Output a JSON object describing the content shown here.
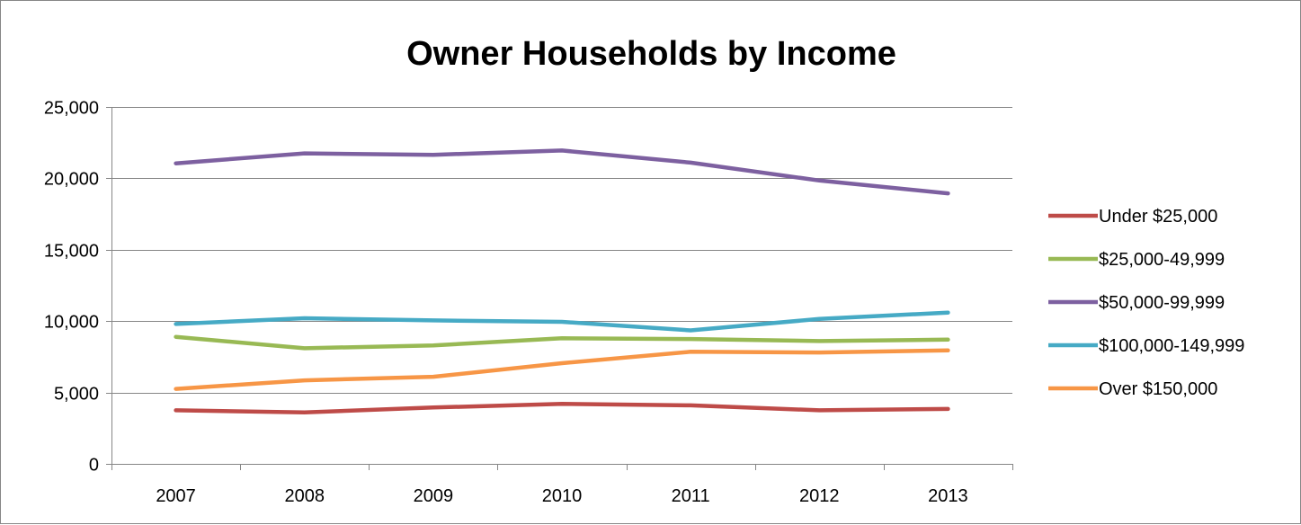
{
  "chart_data": {
    "type": "line",
    "title": "Owner Households by Income",
    "xlabel": "",
    "ylabel": "",
    "categories": [
      "2007",
      "2008",
      "2009",
      "2010",
      "2011",
      "2012",
      "2013"
    ],
    "ylim": [
      0,
      25000
    ],
    "yticks": [
      0,
      5000,
      10000,
      15000,
      20000,
      25000
    ],
    "ytick_labels": [
      "0",
      "5,000",
      "10,000",
      "15,000",
      "20,000",
      "25,000"
    ],
    "grid": "horizontal",
    "legend": "right",
    "series": [
      {
        "name": "Under $25,000",
        "color": "#be4b48",
        "values": [
          3750,
          3600,
          3950,
          4200,
          4100,
          3750,
          3850
        ]
      },
      {
        "name": "$25,000-49,999",
        "color": "#98b954",
        "values": [
          8900,
          8100,
          8300,
          8800,
          8750,
          8600,
          8700
        ]
      },
      {
        "name": "$50,000-99,999",
        "color": "#7d60a0",
        "values": [
          21050,
          21750,
          21650,
          21950,
          21100,
          19850,
          18950
        ]
      },
      {
        "name": "$100,000-149,999",
        "color": "#46aac5",
        "values": [
          9800,
          10200,
          10050,
          9950,
          9350,
          10150,
          10600
        ]
      },
      {
        "name": "Over $150,000",
        "color": "#f79646",
        "values": [
          5250,
          5850,
          6100,
          7050,
          7850,
          7800,
          7950
        ]
      }
    ]
  }
}
